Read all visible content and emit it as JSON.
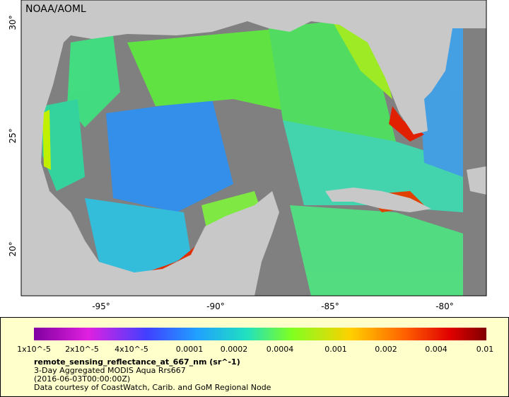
{
  "map": {
    "credit": "NOAA/AOML",
    "lon_labels": [
      "-95°",
      "-90°",
      "-85°",
      "-80°"
    ],
    "lat_labels": [
      "30°",
      "25°",
      "20°"
    ]
  },
  "legend": {
    "scale_labels": [
      "1x10^-5",
      "2x10^-5",
      "4x10^-5",
      "0.0001",
      "0.0002",
      "0.0004",
      "0.001",
      "0.002",
      "0.004",
      "0.01"
    ],
    "variable": "remote_sensing_reflectance_at_667_nm (sr^-1)",
    "dataset": "3-Day Aggregated MODIS Aqua Rrs667",
    "time": "(2016-06-03T00:00:00Z)",
    "courtesy": "Data courtesy of CoastWatch, Carib. and GoM Regional Node"
  }
}
